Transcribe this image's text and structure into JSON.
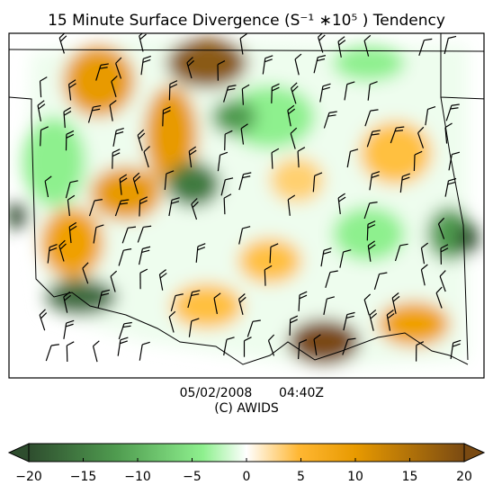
{
  "title": "15 Minute Surface Divergence (S⁻¹ ∗10⁵ ) Tendency",
  "date": "05/02/2008",
  "time": "04:40Z",
  "credit": "(C) AWIDS",
  "colorbar": {
    "range": [
      -20,
      20
    ],
    "ticks": [
      {
        "value": -20,
        "label": "−20"
      },
      {
        "value": -15,
        "label": "−15"
      },
      {
        "value": -10,
        "label": "−10"
      },
      {
        "value": -5,
        "label": "−5"
      },
      0,
      5,
      10,
      15,
      20
    ]
  }
}
